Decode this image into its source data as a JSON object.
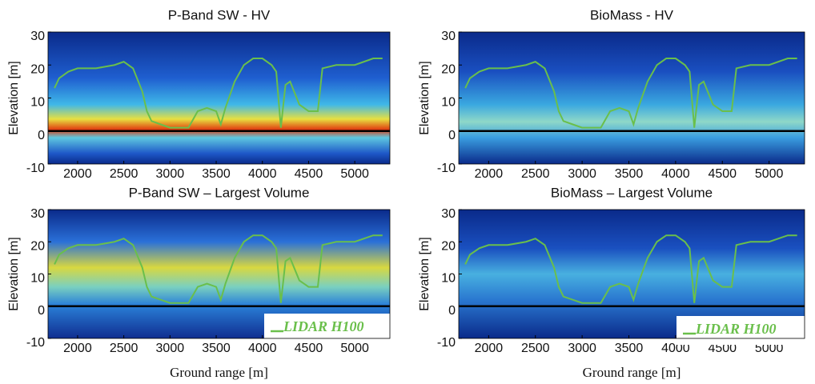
{
  "chart_data": [
    {
      "type": "heatmap",
      "title": "P-Band SW - HV",
      "ylabel": "Elevation [m]",
      "xlim": [
        1680,
        5380
      ],
      "ylim": [
        -10,
        30
      ],
      "xticks": [
        2000,
        2500,
        3000,
        3500,
        4000,
        4500,
        5000
      ],
      "yticks": [
        -10,
        0,
        10,
        20,
        30
      ],
      "reference_line": 0,
      "series": [
        {
          "name": "LIDAR H100",
          "color": "#6abf4b",
          "x": [
            1750,
            1800,
            1900,
            2000,
            2200,
            2400,
            2500,
            2600,
            2700,
            2750,
            2800,
            2900,
            3000,
            3200,
            3300,
            3400,
            3500,
            3550,
            3600,
            3700,
            3800,
            3900,
            4000,
            4100,
            4150,
            4200,
            4250,
            4300,
            4400,
            4500,
            4600,
            4650,
            4800,
            5000,
            5200,
            5300
          ],
          "values": [
            13,
            16,
            18,
            19,
            19,
            20,
            21,
            19,
            12,
            6,
            3,
            2,
            1,
            1,
            6,
            7,
            6,
            2,
            7,
            15,
            20,
            22,
            22,
            20,
            18,
            1,
            14,
            15,
            8,
            6,
            6,
            19,
            20,
            20,
            22,
            22
          ]
        }
      ]
    },
    {
      "type": "heatmap",
      "title": "BioMass - HV",
      "ylabel": "Elevation [m]",
      "xlim": [
        1680,
        5380
      ],
      "ylim": [
        -10,
        30
      ],
      "xticks": [
        2000,
        2500,
        3000,
        3500,
        4000,
        4500,
        5000
      ],
      "yticks": [
        -10,
        0,
        10,
        20,
        30
      ],
      "reference_line": 0,
      "series": [
        {
          "name": "LIDAR H100",
          "color": "#6abf4b",
          "x": [
            1750,
            1800,
            1900,
            2000,
            2200,
            2400,
            2500,
            2600,
            2700,
            2750,
            2800,
            2900,
            3000,
            3200,
            3300,
            3400,
            3500,
            3550,
            3600,
            3700,
            3800,
            3900,
            4000,
            4100,
            4150,
            4200,
            4250,
            4300,
            4400,
            4500,
            4600,
            4650,
            4800,
            5000,
            5200,
            5300
          ],
          "values": [
            13,
            16,
            18,
            19,
            19,
            20,
            21,
            19,
            12,
            6,
            3,
            2,
            1,
            1,
            6,
            7,
            6,
            2,
            7,
            15,
            20,
            22,
            22,
            20,
            18,
            1,
            14,
            15,
            8,
            6,
            6,
            19,
            20,
            20,
            22,
            22
          ]
        }
      ]
    },
    {
      "type": "heatmap",
      "title": "P-Band SW – Largest Volume",
      "ylabel": "Elevation [m]",
      "xlabel": "Ground range [m]",
      "xlim": [
        1680,
        5380
      ],
      "ylim": [
        -10,
        30
      ],
      "xticks": [
        2000,
        2500,
        3000,
        3500,
        4000,
        4500,
        5000
      ],
      "yticks": [
        -10,
        0,
        10,
        20,
        30
      ],
      "reference_line": 0,
      "series": [
        {
          "name": "LIDAR H100",
          "color": "#6abf4b",
          "x": [
            1750,
            1800,
            1900,
            2000,
            2200,
            2400,
            2500,
            2600,
            2700,
            2750,
            2800,
            2900,
            3000,
            3200,
            3300,
            3400,
            3500,
            3550,
            3600,
            3700,
            3800,
            3900,
            4000,
            4100,
            4150,
            4200,
            4250,
            4300,
            4400,
            4500,
            4600,
            4650,
            4800,
            5000,
            5200,
            5300
          ],
          "values": [
            13,
            16,
            18,
            19,
            19,
            20,
            21,
            19,
            12,
            6,
            3,
            2,
            1,
            1,
            6,
            7,
            6,
            2,
            7,
            15,
            20,
            22,
            22,
            20,
            18,
            1,
            14,
            15,
            8,
            6,
            6,
            19,
            20,
            20,
            22,
            22
          ]
        }
      ]
    },
    {
      "type": "heatmap",
      "title": "BioMass – Largest Volume",
      "ylabel": "Elevation [m]",
      "xlabel": "Ground range [m]",
      "xlim": [
        1680,
        5380
      ],
      "ylim": [
        -10,
        30
      ],
      "xticks": [
        2000,
        2500,
        3000,
        3500,
        4000,
        4500,
        5000
      ],
      "yticks": [
        -10,
        0,
        10,
        20,
        30
      ],
      "reference_line": 0,
      "series": [
        {
          "name": "LIDAR H100",
          "color": "#6abf4b",
          "x": [
            1750,
            1800,
            1900,
            2000,
            2200,
            2400,
            2500,
            2600,
            2700,
            2750,
            2800,
            2900,
            3000,
            3200,
            3300,
            3400,
            3500,
            3550,
            3600,
            3700,
            3800,
            3900,
            4000,
            4100,
            4150,
            4200,
            4250,
            4300,
            4400,
            4500,
            4600,
            4650,
            4800,
            5000,
            5200,
            5300
          ],
          "values": [
            13,
            16,
            18,
            19,
            19,
            20,
            21,
            19,
            12,
            6,
            3,
            2,
            1,
            1,
            6,
            7,
            6,
            2,
            7,
            15,
            20,
            22,
            22,
            20,
            18,
            1,
            14,
            15,
            8,
            6,
            6,
            19,
            20,
            20,
            22,
            22
          ]
        }
      ]
    }
  ]
}
